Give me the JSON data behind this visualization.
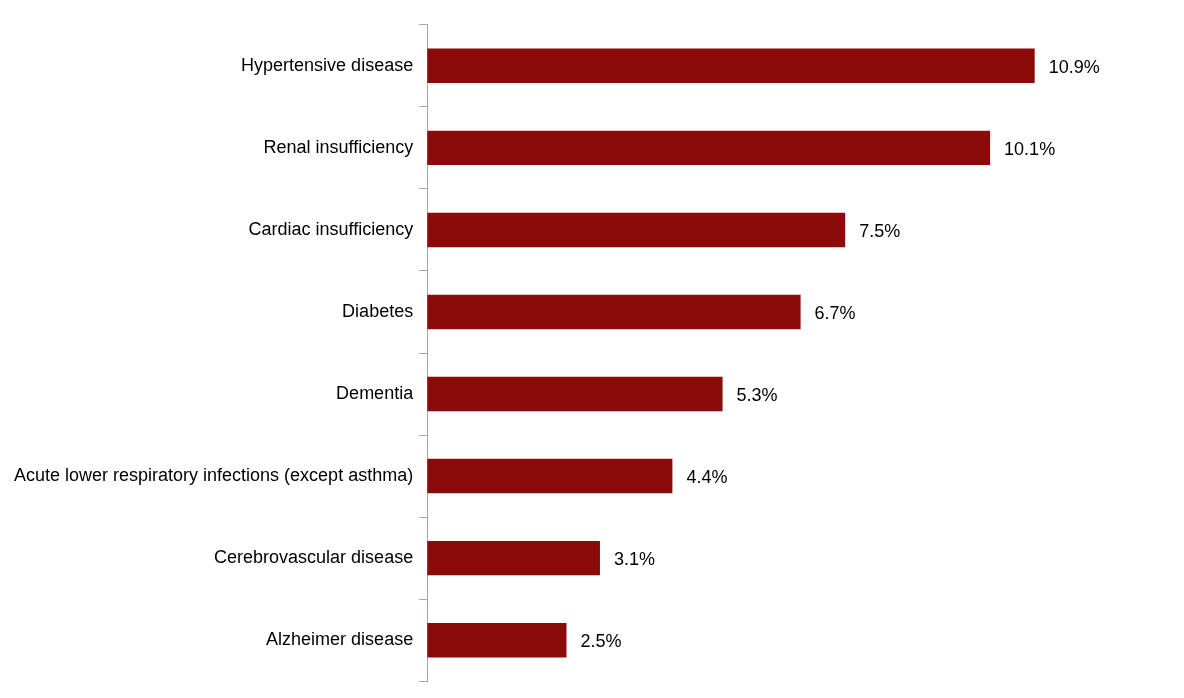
{
  "chart_data": {
    "type": "bar",
    "orientation": "horizontal",
    "categories": [
      "Hypertensive disease",
      "Renal insufficiency",
      "Cardiac insufficiency",
      "Diabetes",
      "Dementia",
      "Acute lower respiratory infections (except asthma)",
      "Cerebrovascular disease",
      "Alzheimer disease"
    ],
    "values": [
      10.9,
      10.1,
      7.5,
      6.7,
      5.3,
      4.4,
      3.1,
      2.5
    ],
    "value_labels": [
      "10.9%",
      "10.1%",
      "7.5%",
      "6.7%",
      "5.3%",
      "4.4%",
      "3.1%",
      "2.5%"
    ],
    "color": "#8b0a0a",
    "legend": false
  }
}
